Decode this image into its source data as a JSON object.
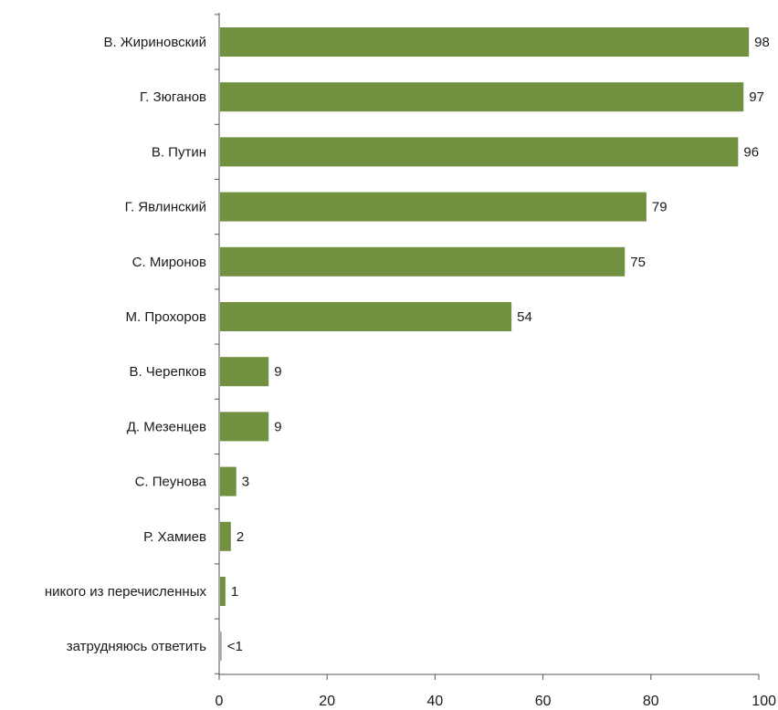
{
  "chart_data": {
    "type": "bar",
    "orientation": "horizontal",
    "title": "",
    "xlabel": "",
    "ylabel": "",
    "xlim": [
      0,
      100
    ],
    "x_ticks": [
      0,
      20,
      40,
      60,
      80,
      100
    ],
    "x_tick_labels": [
      "0",
      "20",
      "40",
      "60",
      "80",
      "100"
    ],
    "grid": false,
    "legend": "none",
    "colors": {
      "bar": "#719040",
      "bar_minor": "#a6a6a6"
    },
    "categories": [
      "В. Жириновский",
      "Г. Зюганов",
      "В. Путин",
      "Г. Явлинский",
      "С. Миронов",
      "М. Прохоров",
      "В. Черепков",
      "Д. Мезенцев",
      "С. Пеунова",
      "Р. Хамиев",
      "никого из перечисленных",
      "затрудняюсь ответить"
    ],
    "values": [
      98,
      97,
      96,
      79,
      75,
      54,
      9,
      9,
      3,
      2,
      1,
      0.3
    ],
    "value_labels": [
      "98",
      "97",
      "96",
      "79",
      "75",
      "54",
      "9",
      "9",
      "3",
      "2",
      "1",
      "<1"
    ]
  }
}
